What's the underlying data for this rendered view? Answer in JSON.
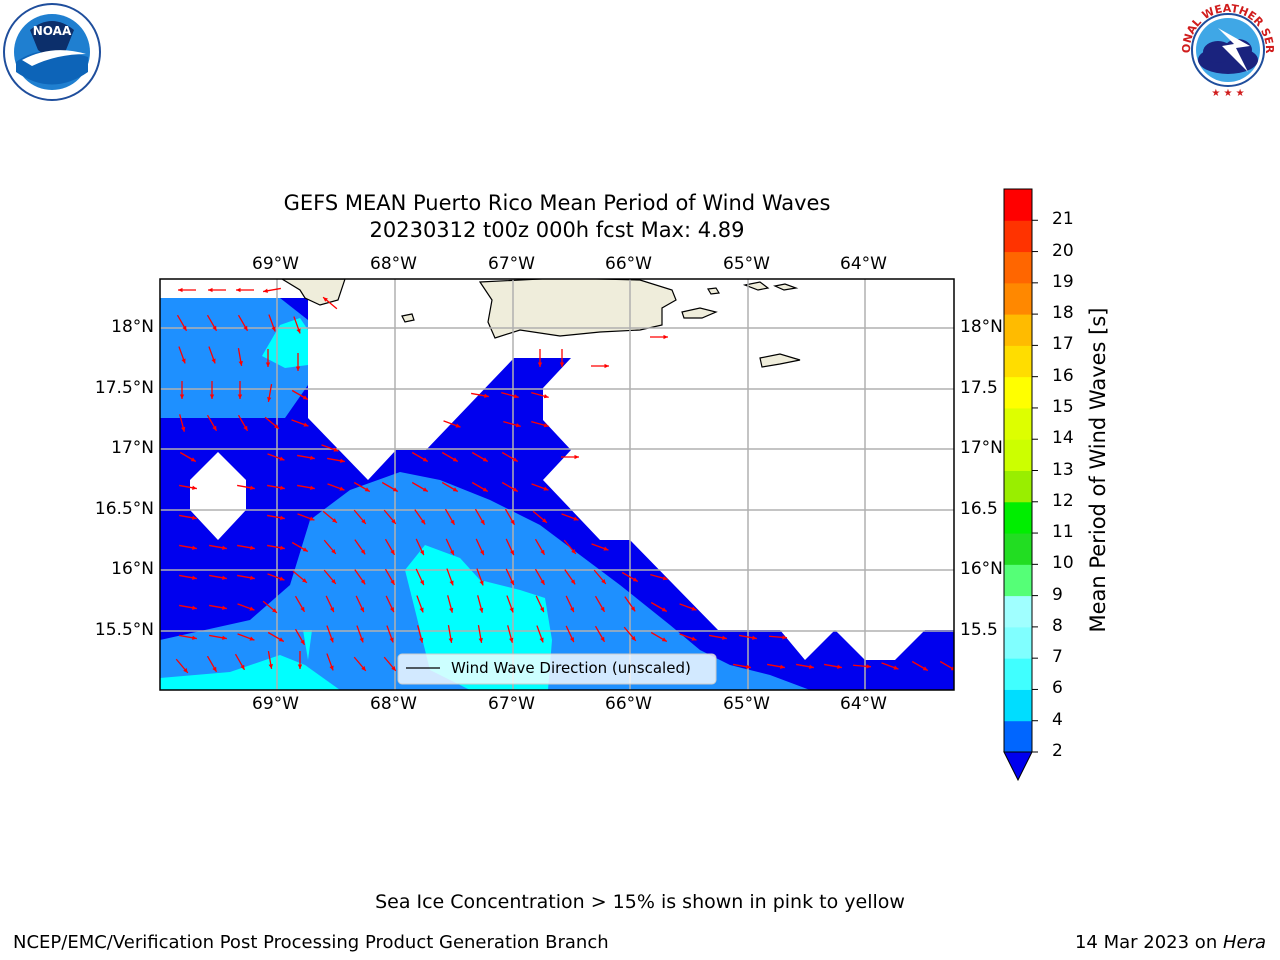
{
  "title_line1": "GEFS MEAN Puerto Rico Mean Period of Wind Waves",
  "title_line2": "20230312 t00z 000h fcst   Max: 4.89",
  "lon_labels": [
    "69°W",
    "68°W",
    "67°W",
    "66°W",
    "65°W",
    "64°W"
  ],
  "lat_labels": [
    "18°N",
    "17.5°N",
    "17°N",
    "16.5°N",
    "16°N",
    "15.5°N"
  ],
  "lat_labels_right": [
    "18°N",
    "17.5",
    "17°N",
    "16.5",
    "16°N",
    "15.5"
  ],
  "legend_label": "Wind Wave Direction (unscaled)",
  "colorbar": {
    "label": "Mean Period of Wind Waves [s]",
    "ticks": [
      "2",
      "4",
      "6",
      "7",
      "8",
      "9",
      "10",
      "11",
      "12",
      "13",
      "14",
      "15",
      "16",
      "17",
      "18",
      "19",
      "20",
      "21"
    ],
    "colors": [
      "#0066ff",
      "#00ddff",
      "#40ffff",
      "#80ffff",
      "#a0ffff",
      "#55ff77",
      "#22dd22",
      "#00ee00",
      "#99ee00",
      "#ccff00",
      "#ddff00",
      "#ffff00",
      "#ffdd00",
      "#ffbb00",
      "#ff8800",
      "#ff6600",
      "#ff3300",
      "#ff0000"
    ],
    "under_color": "#0000ee"
  },
  "sea_ice_note": "Sea Ice Concentration > 15% is shown in pink to yellow",
  "credit_left": "NCEP/EMC/Verification Post Processing Product Generation Branch",
  "credit_right_date": "14 Mar 2023 on ",
  "credit_right_machine": "Hera",
  "logos": {
    "left": "NOAA",
    "right": "NATIONAL WEATHER SERVICE"
  },
  "field_colors": {
    "lt2": "#0000ee",
    "2to4": "#1e90ff",
    "4to6": "#00ffff",
    "land": "#efeddb",
    "arrows": "#ff0000"
  }
}
